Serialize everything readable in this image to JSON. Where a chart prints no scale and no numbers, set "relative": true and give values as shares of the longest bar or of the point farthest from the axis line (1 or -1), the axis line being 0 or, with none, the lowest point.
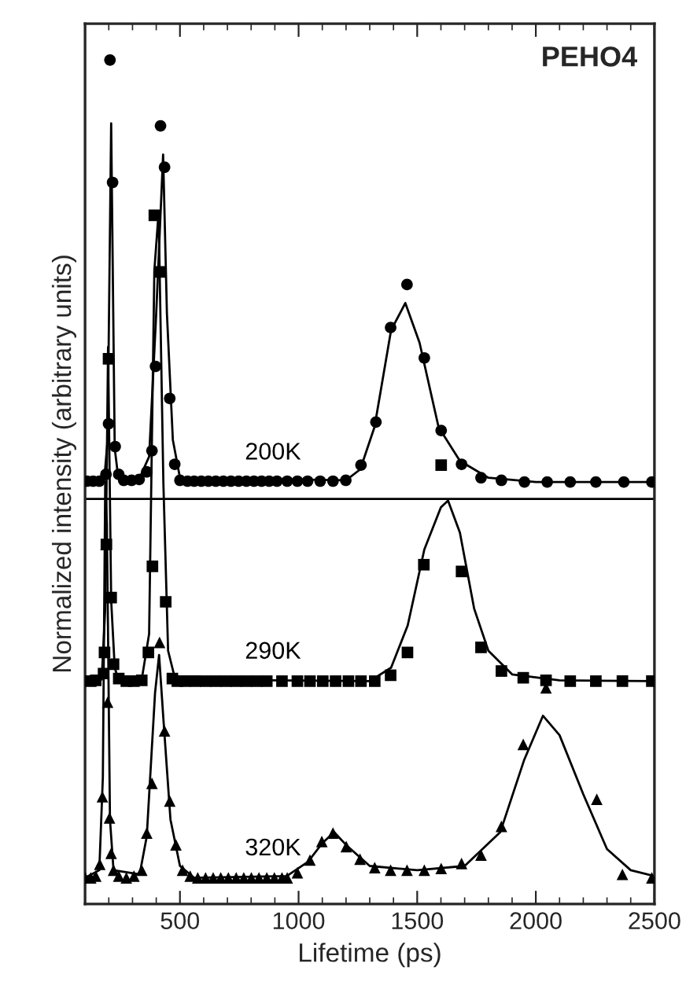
{
  "chart_data": {
    "type": "scatter",
    "xlabel": "Lifetime (ps)",
    "ylabel": "Normalized intensity (arbitrary units)",
    "relative": true,
    "xlim": [
      100,
      2500
    ],
    "xticks": [
      500,
      1000,
      1500,
      2000,
      2500
    ],
    "grid": false,
    "annotations": [
      "PEHO4"
    ],
    "ref_lines": [
      {
        "axis": "y",
        "value": 0.48,
        "color": "#000000"
      }
    ],
    "series": [
      {
        "name": "200K",
        "marker": "circle",
        "color": "#000000",
        "x": [
          109,
          134,
          160,
          188,
          199,
          205,
          216,
          227,
          242,
          263,
          296,
          328,
          360,
          382,
          397,
          418,
          435,
          457,
          478,
          500,
          532,
          560,
          590,
          620,
          651,
          683,
          715,
          747,
          780,
          812,
          844,
          876,
          909,
          952,
          995,
          1038,
          1091,
          1145,
          1199,
          1263,
          1326,
          1388,
          1457,
          1530,
          1601,
          1687,
          1769,
          1855,
          1952,
          2048,
          2145,
          2253,
          2371,
          2489
        ],
        "values": [
          0.501,
          0.501,
          0.501,
          0.509,
          0.569,
          1.0,
          0.855,
          0.542,
          0.509,
          0.502,
          0.502,
          0.503,
          0.512,
          0.537,
          0.637,
          0.922,
          0.873,
          0.599,
          0.521,
          0.502,
          0.501,
          0.501,
          0.501,
          0.501,
          0.501,
          0.501,
          0.501,
          0.501,
          0.501,
          0.501,
          0.501,
          0.501,
          0.501,
          0.501,
          0.501,
          0.501,
          0.501,
          0.501,
          0.502,
          0.52,
          0.571,
          0.683,
          0.734,
          0.647,
          0.561,
          0.521,
          0.505,
          0.502,
          0.5,
          0.5,
          0.5,
          0.5,
          0.5,
          0.5
        ]
      },
      {
        "type": "line",
        "color": "#000000",
        "x": [
          100,
          180,
          195,
          210,
          225,
          240,
          330,
          370,
          400,
          429,
          445,
          470,
          500,
          1200,
          1260,
          1320,
          1390,
          1450,
          1510,
          1590,
          1680,
          1800,
          2000,
          2500
        ],
        "values": [
          0.5,
          0.5,
          0.55,
          0.925,
          0.54,
          0.505,
          0.505,
          0.53,
          0.7,
          0.888,
          0.7,
          0.55,
          0.505,
          0.502,
          0.515,
          0.565,
          0.68,
          0.712,
          0.665,
          0.565,
          0.525,
          0.505,
          0.5,
          0.5
        ]
      },
      {
        "name": "290K",
        "marker": "square",
        "color": "#000000",
        "x": [
          124,
          145,
          178,
          182,
          190,
          199,
          210,
          220,
          242,
          274,
          306,
          339,
          367,
          384,
          392,
          418,
          440,
          468,
          489,
          522,
          565,
          608,
          651,
          694,
          737,
          780,
          823,
          866,
          930,
          995,
          1048,
          1102,
          1156,
          1210,
          1263,
          1321,
          1388,
          1459,
          1528,
          1601,
          1687,
          1769,
          1855,
          1947,
          2043,
          2145,
          2253,
          2365,
          2489
        ],
        "values": [
          0.264,
          0.265,
          0.273,
          0.298,
          0.426,
          0.646,
          0.363,
          0.284,
          0.267,
          0.264,
          0.264,
          0.265,
          0.298,
          0.4,
          0.816,
          0.749,
          0.358,
          0.267,
          0.264,
          0.264,
          0.264,
          0.264,
          0.264,
          0.264,
          0.264,
          0.264,
          0.264,
          0.264,
          0.264,
          0.264,
          0.264,
          0.264,
          0.264,
          0.264,
          0.264,
          0.264,
          0.271,
          0.298,
          0.402,
          0.52,
          0.394,
          0.304,
          0.276,
          0.268,
          0.265,
          0.264,
          0.264,
          0.264,
          0.264
        ]
      },
      {
        "type": "line",
        "color": "#000000",
        "x": [
          100,
          170,
          185,
          197,
          210,
          225,
          240,
          340,
          370,
          392,
          410,
          430,
          450,
          480,
          1300,
          1390,
          1460,
          1530,
          1600,
          1630,
          1680,
          1740,
          1800,
          1900,
          2100,
          2500
        ],
        "values": [
          0.264,
          0.266,
          0.35,
          0.66,
          0.36,
          0.28,
          0.266,
          0.268,
          0.32,
          0.75,
          0.82,
          0.5,
          0.3,
          0.266,
          0.264,
          0.28,
          0.33,
          0.42,
          0.47,
          0.478,
          0.44,
          0.35,
          0.3,
          0.272,
          0.265,
          0.264
        ]
      },
      {
        "name": "320K",
        "marker": "triangle",
        "color": "#000000",
        "x": [
          101,
          124,
          145,
          162,
          173,
          188,
          195,
          203,
          210,
          220,
          242,
          274,
          306,
          339,
          360,
          382,
          414,
          435,
          457,
          483,
          511,
          543,
          575,
          608,
          640,
          672,
          704,
          737,
          769,
          801,
          833,
          866,
          898,
          930,
          952,
          995,
          1048,
          1098,
          1145,
          1201,
          1259,
          1321,
          1388,
          1457,
          1530,
          1601,
          1687,
          1769,
          1855,
          1947,
          2043,
          2257,
          2365,
          2489
        ],
        "values": [
          0.031,
          0.031,
          0.033,
          0.047,
          0.127,
          0.426,
          0.239,
          0.102,
          0.06,
          0.04,
          0.033,
          0.031,
          0.033,
          0.04,
          0.084,
          0.143,
          0.31,
          0.205,
          0.122,
          0.07,
          0.04,
          0.033,
          0.031,
          0.031,
          0.031,
          0.031,
          0.031,
          0.031,
          0.031,
          0.031,
          0.031,
          0.031,
          0.031,
          0.031,
          0.031,
          0.037,
          0.052,
          0.074,
          0.084,
          0.068,
          0.053,
          0.043,
          0.04,
          0.04,
          0.04,
          0.042,
          0.048,
          0.058,
          0.092,
          0.189,
          0.256,
          0.124,
          0.035,
          0.031
        ]
      },
      {
        "type": "line",
        "color": "#000000",
        "x": [
          100,
          160,
          175,
          185,
          192,
          205,
          220,
          330,
          360,
          395,
          412,
          430,
          460,
          500,
          560,
          950,
          1040,
          1100,
          1150,
          1200,
          1300,
          1500,
          1700,
          1850,
          1950,
          2030,
          2100,
          2200,
          2300,
          2400,
          2500
        ],
        "values": [
          0.031,
          0.04,
          0.15,
          0.5,
          0.45,
          0.1,
          0.04,
          0.035,
          0.08,
          0.25,
          0.295,
          0.22,
          0.1,
          0.045,
          0.031,
          0.033,
          0.05,
          0.072,
          0.085,
          0.07,
          0.045,
          0.04,
          0.045,
          0.085,
          0.17,
          0.223,
          0.2,
          0.13,
          0.065,
          0.04,
          0.033
        ]
      }
    ]
  }
}
